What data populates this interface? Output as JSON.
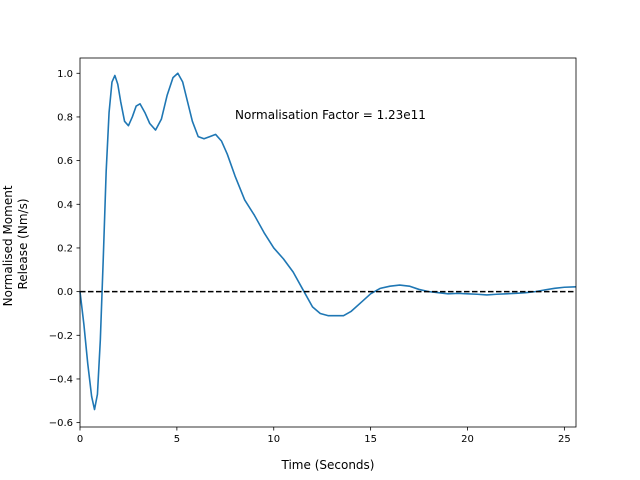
{
  "chart_data": {
    "type": "line",
    "xlabel": "Time (Seconds)",
    "ylabel_lines": [
      "Normalised Moment",
      "Release (Nm/s)"
    ],
    "xlim": [
      0,
      25.6
    ],
    "ylim": [
      -0.62,
      1.07
    ],
    "xticks": [
      0,
      5,
      10,
      15,
      20,
      25
    ],
    "xtick_labels": [
      "0",
      "5",
      "10",
      "15",
      "20",
      "25"
    ],
    "yticks": [
      -0.6,
      -0.4,
      -0.2,
      0.0,
      0.2,
      0.4,
      0.6,
      0.8,
      1.0
    ],
    "ytick_labels": [
      "−0.6",
      "−0.4",
      "−0.2",
      "0.0",
      "0.2",
      "0.4",
      "0.6",
      "0.8",
      "1.0"
    ],
    "grid": false,
    "annotation": {
      "text": "Normalisation Factor = 1.23e11",
      "x": 8.0,
      "y": 0.81
    },
    "reference_line": {
      "y": 0.0,
      "style": "dashed",
      "color": "#000000"
    },
    "series": [
      {
        "color": "#1f77b4",
        "x": [
          0,
          0.2,
          0.4,
          0.6,
          0.75,
          0.9,
          1.05,
          1.2,
          1.35,
          1.5,
          1.65,
          1.8,
          1.95,
          2.1,
          2.3,
          2.5,
          2.7,
          2.9,
          3.1,
          3.35,
          3.6,
          3.9,
          4.2,
          4.5,
          4.8,
          5.05,
          5.3,
          5.55,
          5.8,
          6.1,
          6.4,
          6.7,
          7.0,
          7.3,
          7.6,
          8.0,
          8.5,
          9.0,
          9.5,
          10.0,
          10.5,
          11.0,
          11.5,
          12.0,
          12.4,
          12.8,
          13.2,
          13.6,
          14.0,
          14.5,
          15.0,
          15.5,
          16.0,
          16.5,
          17.0,
          17.5,
          18.0,
          18.5,
          19.0,
          19.5,
          20.0,
          20.5,
          21.0,
          21.5,
          22.0,
          22.5,
          23.0,
          23.5,
          24.0,
          24.5,
          25.0,
          25.6
        ],
        "y": [
          0.0,
          -0.15,
          -0.33,
          -0.48,
          -0.54,
          -0.47,
          -0.22,
          0.15,
          0.55,
          0.82,
          0.96,
          0.99,
          0.95,
          0.87,
          0.78,
          0.76,
          0.8,
          0.85,
          0.86,
          0.82,
          0.77,
          0.74,
          0.79,
          0.9,
          0.98,
          1.0,
          0.96,
          0.87,
          0.78,
          0.71,
          0.7,
          0.71,
          0.72,
          0.69,
          0.63,
          0.53,
          0.42,
          0.35,
          0.27,
          0.2,
          0.15,
          0.09,
          0.01,
          -0.07,
          -0.1,
          -0.11,
          -0.11,
          -0.11,
          -0.09,
          -0.05,
          -0.01,
          0.015,
          0.025,
          0.03,
          0.025,
          0.01,
          0.0,
          -0.005,
          -0.01,
          -0.008,
          -0.01,
          -0.012,
          -0.015,
          -0.012,
          -0.01,
          -0.008,
          -0.005,
          0.0,
          0.008,
          0.015,
          0.02,
          0.022
        ]
      }
    ]
  }
}
